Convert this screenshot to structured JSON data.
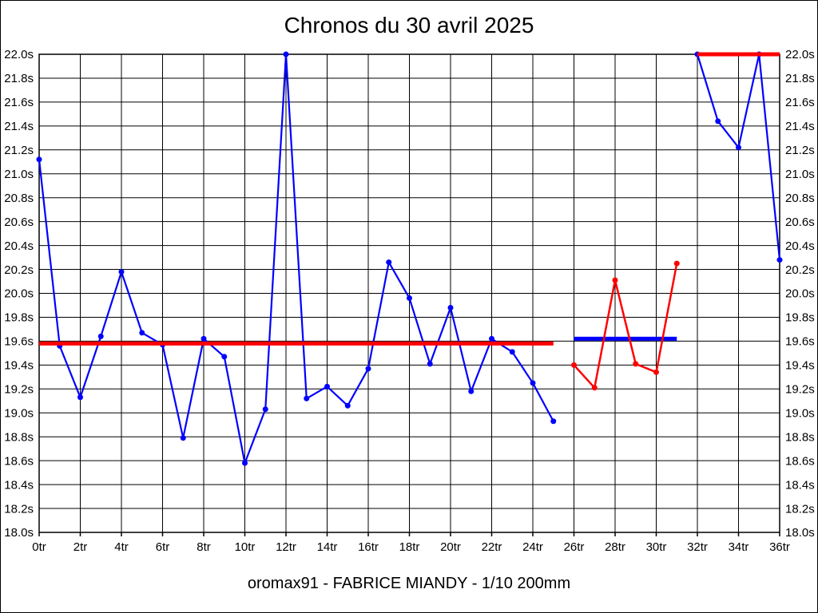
{
  "title": "Chronos du 30 avril 2025",
  "footer": "oromax91 - FABRICE MIANDY - 1/10 200mm",
  "colors": {
    "series_blue": "#0000ff",
    "series_red": "#ff0000",
    "grid": "#000000",
    "background": "#ffffff",
    "text": "#000000"
  },
  "chart_data": {
    "type": "line",
    "title": "Chronos du 30 avril 2025",
    "x_unit": "tr",
    "y_unit": "s",
    "xlim": [
      0,
      36
    ],
    "ylim": [
      18.0,
      22.0
    ],
    "x_tick_step": 2,
    "y_tick_step": 0.2,
    "grid": true,
    "legend_position": "none",
    "x_tick_labels": [
      "0tr",
      "2tr",
      "4tr",
      "6tr",
      "8tr",
      "10tr",
      "12tr",
      "14tr",
      "16tr",
      "18tr",
      "20tr",
      "22tr",
      "24tr",
      "26tr",
      "28tr",
      "30tr",
      "32tr",
      "34tr",
      "36tr"
    ],
    "y_tick_labels": [
      "18.0s",
      "18.2s",
      "18.4s",
      "18.6s",
      "18.8s",
      "19.0s",
      "19.2s",
      "19.4s",
      "19.6s",
      "19.8s",
      "20.0s",
      "20.2s",
      "20.4s",
      "20.6s",
      "20.8s",
      "21.0s",
      "21.2s",
      "21.4s",
      "21.6s",
      "21.8s",
      "22.0s"
    ],
    "series": [
      {
        "name": "chronos-blue-first-run",
        "color": "#0000ff",
        "line_width": 2.2,
        "x": [
          0,
          1,
          2,
          3,
          4,
          5,
          6,
          7,
          8,
          9,
          10,
          11,
          12,
          13,
          14,
          15,
          16,
          17,
          18,
          19,
          20,
          21,
          22,
          23,
          24,
          25
        ],
        "y": [
          21.12,
          19.56,
          19.13,
          19.64,
          20.18,
          19.67,
          19.57,
          18.79,
          19.62,
          19.47,
          18.58,
          19.03,
          22.0,
          19.12,
          19.22,
          19.06,
          19.37,
          20.26,
          19.96,
          19.41,
          19.88,
          19.18,
          19.62,
          19.51,
          19.25,
          18.93
        ]
      },
      {
        "name": "chronos-red-run",
        "color": "#ff0000",
        "line_width": 2.5,
        "x": [
          26,
          27,
          28,
          29,
          30,
          31
        ],
        "y": [
          19.4,
          19.21,
          20.11,
          19.41,
          19.34,
          20.25
        ]
      },
      {
        "name": "chronos-blue-second-run",
        "color": "#0000ff",
        "line_width": 2.2,
        "x": [
          32,
          33,
          34,
          35,
          36
        ],
        "y": [
          22.0,
          21.44,
          21.22,
          22.0,
          20.28
        ]
      }
    ],
    "reference_lines": [
      {
        "name": "red-mean-line",
        "color": "#ff0000",
        "y": 19.58,
        "x_start": 0,
        "x_end": 25,
        "width": 5
      },
      {
        "name": "blue-mean-line",
        "color": "#0000ff",
        "y": 19.62,
        "x_start": 26,
        "x_end": 31,
        "width": 5
      },
      {
        "name": "red-top-line",
        "color": "#ff0000",
        "y": 22.0,
        "x_start": 32,
        "x_end": 36,
        "width": 5
      }
    ]
  }
}
